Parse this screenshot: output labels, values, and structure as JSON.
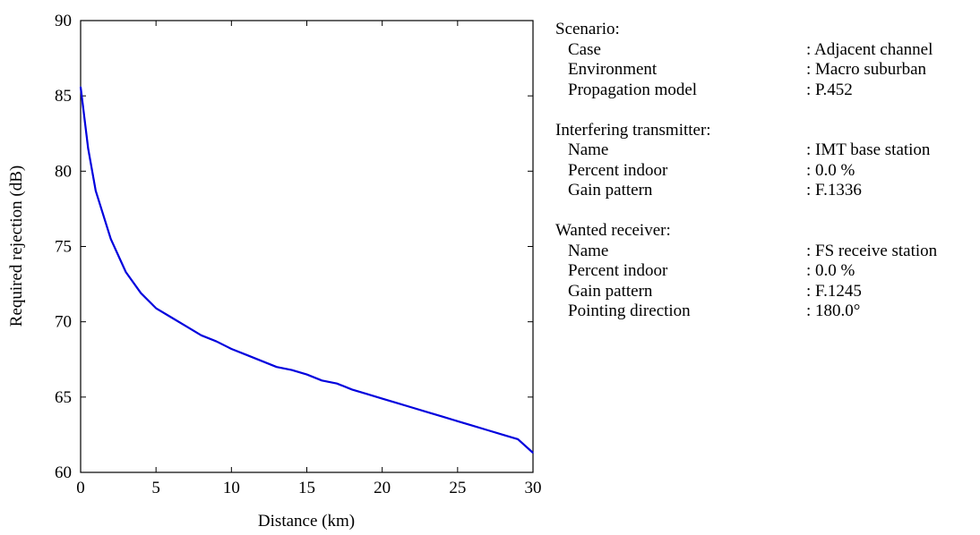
{
  "chart_data": {
    "type": "line",
    "title": "",
    "xlabel": "Distance (km)",
    "ylabel": "Required rejection (dB)",
    "xlim": [
      0,
      30
    ],
    "ylim": [
      60,
      90
    ],
    "xticks": [
      0,
      5,
      10,
      15,
      20,
      25,
      30
    ],
    "yticks": [
      60,
      65,
      70,
      75,
      80,
      85,
      90
    ],
    "grid": false,
    "line_color": "#0000dd",
    "series": [
      {
        "x": [
          0,
          0.5,
          1,
          2,
          3,
          4,
          5,
          6,
          7,
          8,
          9,
          10,
          11,
          12,
          13,
          14,
          15,
          16,
          17,
          18,
          19,
          20,
          21,
          22,
          23,
          24,
          25,
          26,
          27,
          28,
          29,
          30
        ],
        "values": [
          85.6,
          81.5,
          78.7,
          75.5,
          73.3,
          71.9,
          70.9,
          70.3,
          69.7,
          69.1,
          68.7,
          68.2,
          67.8,
          67.4,
          67.0,
          66.8,
          66.5,
          66.1,
          65.9,
          65.5,
          65.2,
          64.9,
          64.6,
          64.3,
          64.0,
          63.7,
          63.4,
          63.1,
          62.8,
          62.5,
          62.2,
          61.3
        ]
      }
    ]
  },
  "info": {
    "sections": [
      {
        "title": "Scenario:",
        "rows": [
          {
            "key": "Case",
            "value": ": Adjacent channel"
          },
          {
            "key": "Environment",
            "value": ": Macro suburban"
          },
          {
            "key": "Propagation model",
            "value": ": P.452"
          }
        ]
      },
      {
        "title": "Interfering transmitter:",
        "rows": [
          {
            "key": "Name",
            "value": ": IMT base station"
          },
          {
            "key": "Percent indoor",
            "value": ": 0.0 %"
          },
          {
            "key": "Gain pattern",
            "value": ": F.1336"
          }
        ]
      },
      {
        "title": "Wanted receiver:",
        "rows": [
          {
            "key": "Name",
            "value": ": FS receive station"
          },
          {
            "key": "Percent indoor",
            "value": ": 0.0 %"
          },
          {
            "key": "Gain pattern",
            "value": ": F.1245"
          },
          {
            "key": "Pointing direction",
            "value": ": 180.0°"
          }
        ]
      }
    ]
  }
}
